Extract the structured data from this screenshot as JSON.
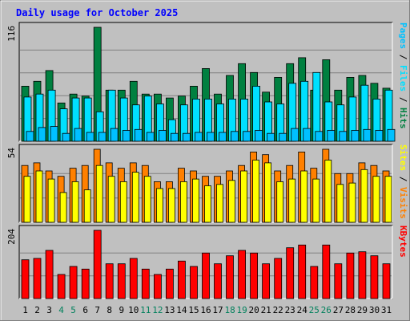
{
  "chart_data": {
    "type": "bar",
    "title": "Daily usage for October 2025",
    "categories": [
      "1",
      "2",
      "3",
      "4",
      "5",
      "6",
      "7",
      "8",
      "9",
      "10",
      "11",
      "12",
      "13",
      "14",
      "15",
      "16",
      "17",
      "18",
      "19",
      "20",
      "21",
      "22",
      "23",
      "24",
      "25",
      "26",
      "27",
      "28",
      "29",
      "30",
      "31"
    ],
    "weekend_days": [
      "4",
      "5",
      "11",
      "12",
      "18",
      "19",
      "25",
      "26"
    ],
    "panels": [
      {
        "id": "top",
        "ymax": 116,
        "ymax_label": "116",
        "legend": [
          "Pages",
          "Files",
          "Hits"
        ],
        "series": [
          {
            "name": "Hits",
            "color": "#008040",
            "values": [
              56,
              61,
              72,
              39,
              48,
              46,
              116,
              52,
              52,
              61,
              48,
              48,
              44,
              46,
              56,
              74,
              48,
              67,
              79,
              70,
              50,
              65,
              79,
              85,
              52,
              83,
              52,
              65,
              67,
              59,
              54
            ]
          },
          {
            "name": "Files",
            "color": "#00e0ff",
            "values": [
              45,
              48,
              52,
              33,
              44,
              44,
              30,
              52,
              44,
              37,
              46,
              38,
              22,
              37,
              43,
              43,
              38,
              43,
              43,
              56,
              40,
              38,
              59,
              61,
              70,
              40,
              37,
              45,
              57,
              43,
              52
            ]
          },
          {
            "name": "Pages",
            "color": "#00c0ff",
            "values": [
              10,
              14,
              15,
              8,
              13,
              9,
              9,
              13,
              11,
              12,
              9,
              11,
              8,
              8,
              9,
              9,
              9,
              10,
              10,
              11,
              8,
              8,
              13,
              13,
              10,
              11,
              10,
              11,
              12,
              11,
              12
            ]
          }
        ]
      },
      {
        "id": "middle",
        "ymax": 54,
        "ymax_label": "54",
        "legend": [
          "Sites",
          "Visits"
        ],
        "series": [
          {
            "name": "Visits",
            "color": "#ff8000",
            "values": [
              42,
              44,
              38,
              34,
              40,
              42,
              54,
              44,
              40,
              44,
              42,
              30,
              30,
              40,
              38,
              34,
              34,
              38,
              42,
              52,
              50,
              38,
              42,
              52,
              40,
              54,
              36,
              36,
              44,
              42,
              38
            ]
          },
          {
            "name": "Sites",
            "color": "#ffff00",
            "values": [
              34,
              38,
              32,
              22,
              30,
              24,
              42,
              34,
              30,
              37,
              34,
              25,
              25,
              30,
              32,
              27,
              28,
              31,
              38,
              46,
              44,
              30,
              32,
              38,
              32,
              46,
              28,
              29,
              39,
              34,
              34
            ]
          }
        ]
      },
      {
        "id": "bottom",
        "ymax": 204,
        "ymax_label": "204",
        "legend": [
          "KBytes"
        ],
        "series": [
          {
            "name": "KBytes",
            "color": "#ff0000",
            "values": [
              116,
              120,
              144,
              72,
              96,
              88,
              204,
              104,
              104,
              120,
              88,
              72,
              88,
              112,
              96,
              136,
              104,
              128,
              144,
              136,
              104,
              120,
              152,
              160,
              96,
              160,
              104,
              136,
              140,
              128,
              104
            ]
          }
        ]
      }
    ],
    "colors": {
      "background": "#c0c0c0",
      "plot": "#c0c0c0",
      "grid": "#808080",
      "title": "#0000ff",
      "axis_label": "#000000",
      "weekend_label": "#00805c"
    }
  }
}
